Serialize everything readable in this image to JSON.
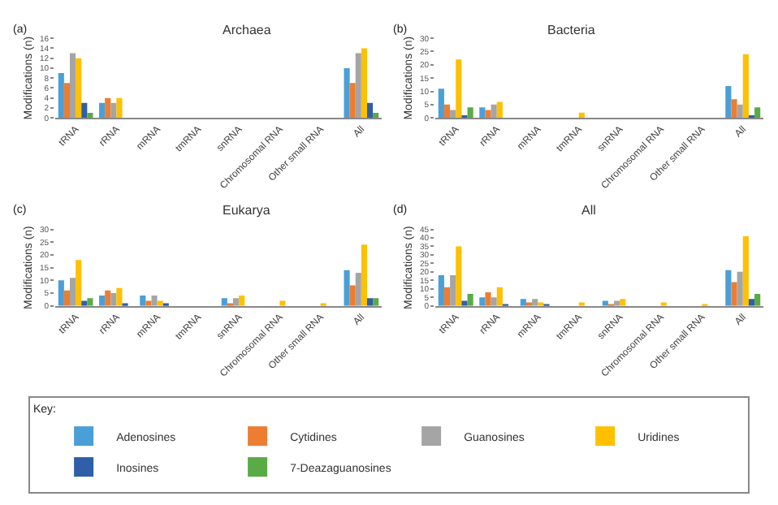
{
  "chart_data": [
    {
      "type": "bar",
      "title": "Archaea",
      "annotations": [
        "(a)"
      ],
      "ylabel": "Modifications (n)",
      "categories": [
        "tRNA",
        "rRNA",
        "mRNA",
        "tmRNA",
        "snRNA",
        "Chromosomal RNA",
        "Other small RNA",
        "All"
      ],
      "ylim": [
        0,
        16
      ],
      "yticks": [
        0,
        2,
        4,
        6,
        8,
        10,
        12,
        14,
        16
      ],
      "legend": "bottom",
      "legend_title": "Key:",
      "series": [
        {
          "name": "Adenosines",
          "color": "#4a9fd8",
          "values": [
            9,
            3,
            0,
            0,
            0,
            0,
            0,
            10
          ]
        },
        {
          "name": "Cytidines",
          "color": "#ed7d31",
          "values": [
            7,
            4,
            0,
            0,
            0,
            0,
            0,
            7
          ]
        },
        {
          "name": "Guanosines",
          "color": "#a5a5a5",
          "values": [
            13,
            3,
            0,
            0,
            0,
            0,
            0,
            13
          ]
        },
        {
          "name": "Uridines",
          "color": "#ffc000",
          "values": [
            12,
            4,
            0,
            0,
            0,
            0,
            0,
            14
          ]
        },
        {
          "name": "Inosines",
          "color": "#2e5fa8",
          "values": [
            3,
            0,
            0,
            0,
            0,
            0,
            0,
            3
          ]
        },
        {
          "name": "7-Deazaguanosines",
          "color": "#5aaa46",
          "values": [
            1,
            0,
            0,
            0,
            0,
            0,
            0,
            1
          ]
        }
      ]
    },
    {
      "type": "bar",
      "title": "Bacteria",
      "annotations": [
        "(b)"
      ],
      "ylabel": "Modifications (n)",
      "categories": [
        "tRNA",
        "rRNA",
        "mRNA",
        "tmRNA",
        "snRNA",
        "Chromosomal RNA",
        "Other small RNA",
        "All"
      ],
      "ylim": [
        0,
        30
      ],
      "yticks": [
        0,
        5,
        10,
        15,
        20,
        25,
        30
      ],
      "legend": "bottom",
      "series": [
        {
          "name": "Adenosines",
          "color": "#4a9fd8",
          "values": [
            11,
            4,
            0,
            0,
            0,
            0,
            0,
            12
          ]
        },
        {
          "name": "Cytidines",
          "color": "#ed7d31",
          "values": [
            5,
            3,
            0,
            0,
            0,
            0,
            0,
            7
          ]
        },
        {
          "name": "Guanosines",
          "color": "#a5a5a5",
          "values": [
            3,
            5,
            0,
            0,
            0,
            0,
            0,
            5
          ]
        },
        {
          "name": "Uridines",
          "color": "#ffc000",
          "values": [
            22,
            6,
            0,
            2,
            0,
            0,
            0,
            24
          ]
        },
        {
          "name": "Inosines",
          "color": "#2e5fa8",
          "values": [
            1,
            0,
            0,
            0,
            0,
            0,
            0,
            1
          ]
        },
        {
          "name": "7-Deazaguanosines",
          "color": "#5aaa46",
          "values": [
            4,
            0,
            0,
            0,
            0,
            0,
            0,
            4
          ]
        }
      ]
    },
    {
      "type": "bar",
      "title": "Eukarya",
      "annotations": [
        "(c)"
      ],
      "ylabel": "Modifications (n)",
      "categories": [
        "tRNA",
        "rRNA",
        "mRNA",
        "tmRNA",
        "snRNA",
        "Chromosomal RNA",
        "Other small RNA",
        "All"
      ],
      "ylim": [
        0,
        30
      ],
      "yticks": [
        0,
        5,
        10,
        15,
        20,
        25,
        30
      ],
      "legend": "bottom",
      "series": [
        {
          "name": "Adenosines",
          "color": "#4a9fd8",
          "values": [
            10,
            4,
            4,
            0,
            3,
            0,
            0,
            14
          ]
        },
        {
          "name": "Cytidines",
          "color": "#ed7d31",
          "values": [
            6,
            6,
            2,
            0,
            1,
            0,
            0,
            8
          ]
        },
        {
          "name": "Guanosines",
          "color": "#a5a5a5",
          "values": [
            11,
            5,
            4,
            0,
            3,
            0,
            0,
            13
          ]
        },
        {
          "name": "Uridines",
          "color": "#ffc000",
          "values": [
            18,
            7,
            2,
            0,
            4,
            2,
            1,
            24
          ]
        },
        {
          "name": "Inosines",
          "color": "#2e5fa8",
          "values": [
            2,
            1,
            1,
            0,
            0,
            0,
            0,
            3
          ]
        },
        {
          "name": "7-Deazaguanosines",
          "color": "#5aaa46",
          "values": [
            3,
            0,
            0,
            0,
            0,
            0,
            0,
            3
          ]
        }
      ]
    },
    {
      "type": "bar",
      "title": "All",
      "annotations": [
        "(d)"
      ],
      "ylabel": "Modifications (n)",
      "categories": [
        "tRNA",
        "rRNA",
        "mRNA",
        "tmRNA",
        "snRNA",
        "Chromosomal RNA",
        "Other small RNA",
        "All"
      ],
      "ylim": [
        0,
        45
      ],
      "yticks": [
        0,
        5,
        10,
        15,
        20,
        25,
        30,
        35,
        40,
        45
      ],
      "legend": "bottom",
      "series": [
        {
          "name": "Adenosines",
          "color": "#4a9fd8",
          "values": [
            18,
            5,
            4,
            0,
            3,
            0,
            0,
            21
          ]
        },
        {
          "name": "Cytidines",
          "color": "#ed7d31",
          "values": [
            11,
            8,
            2,
            0,
            1,
            0,
            0,
            14
          ]
        },
        {
          "name": "Guanosines",
          "color": "#a5a5a5",
          "values": [
            18,
            5,
            4,
            0,
            3,
            0,
            0,
            20
          ]
        },
        {
          "name": "Uridines",
          "color": "#ffc000",
          "values": [
            35,
            11,
            2,
            2,
            4,
            2,
            1,
            41
          ]
        },
        {
          "name": "Inosines",
          "color": "#2e5fa8",
          "values": [
            3,
            1,
            1,
            0,
            0,
            0,
            0,
            4
          ]
        },
        {
          "name": "7-Deazaguanosines",
          "color": "#5aaa46",
          "values": [
            7,
            0,
            0,
            0,
            0,
            0,
            0,
            7
          ]
        }
      ]
    }
  ]
}
